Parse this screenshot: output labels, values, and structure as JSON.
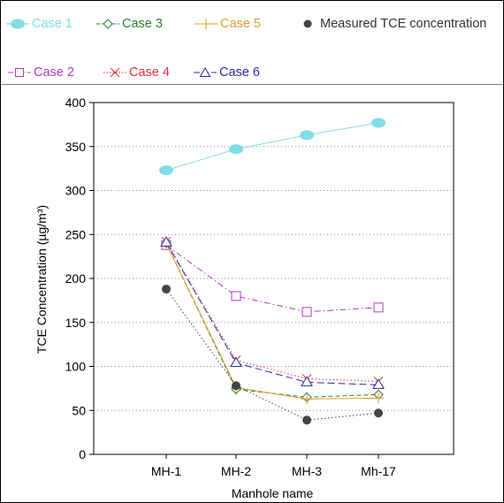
{
  "chart_data": {
    "type": "line",
    "xlabel": "Manhole name",
    "ylabel": "TCE Concentration (µg/m³)",
    "categories": [
      "MH-1",
      "MH-2",
      "MH-3",
      "Mh-17"
    ],
    "ylim": [
      0,
      400
    ],
    "yticks": [
      0,
      50,
      100,
      150,
      200,
      250,
      300,
      350,
      400
    ],
    "grid": "horizontal-dotted",
    "legend_position": "top",
    "series": [
      {
        "name": "Case 1",
        "color": "#7fdde6",
        "marker": "filled-ellipse",
        "line": "solid",
        "values": [
          323,
          347,
          363,
          377
        ]
      },
      {
        "name": "Case 2",
        "color": "#b03ac9",
        "marker": "square",
        "line": "dash-dot",
        "values": [
          238,
          180,
          162,
          167
        ]
      },
      {
        "name": "Case 3",
        "color": "#2e7d32",
        "marker": "diamond",
        "line": "dashed",
        "values": [
          240,
          74,
          65,
          68
        ]
      },
      {
        "name": "Case 4",
        "color": "#e0323a",
        "marker": "x",
        "line": "dotted",
        "values": [
          242,
          107,
          86,
          83
        ]
      },
      {
        "name": "Case 5",
        "color": "#e39b2a",
        "marker": "plus",
        "line": "solid",
        "values": [
          240,
          76,
          63,
          64
        ]
      },
      {
        "name": "Case 6",
        "color": "#2a2aa6",
        "marker": "triangle",
        "line": "long-dash",
        "values": [
          241,
          104,
          82,
          79
        ]
      },
      {
        "name": "Measured TCE concentration",
        "color": "#444444",
        "marker": "filled-circle",
        "line": "dotted",
        "values": [
          188,
          78,
          39,
          47
        ]
      }
    ]
  }
}
